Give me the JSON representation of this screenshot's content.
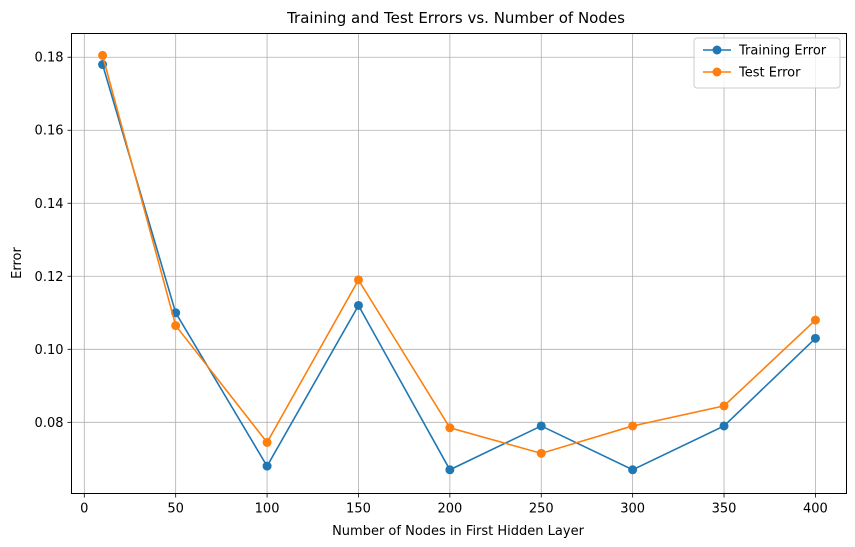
{
  "chart_data": {
    "type": "line",
    "title": "Training and Test Errors vs. Number of Nodes",
    "xlabel": "Number of Nodes in First Hidden Layer",
    "ylabel": "Error",
    "x": [
      10,
      50,
      100,
      150,
      200,
      250,
      300,
      350,
      400
    ],
    "xlim": [
      -7,
      417
    ],
    "ylim": [
      0.0605,
      0.1865
    ],
    "xticks": [
      0,
      50,
      100,
      150,
      200,
      250,
      300,
      350,
      400
    ],
    "yticks": [
      0.08,
      0.1,
      0.12,
      0.14,
      0.16,
      0.18
    ],
    "ytick_labels": [
      "0.08",
      "0.10",
      "0.12",
      "0.14",
      "0.16",
      "0.18"
    ],
    "grid": true,
    "legend_position": "top-right",
    "series": [
      {
        "name": "Training Error",
        "color": "#1f77b4",
        "marker": "circle",
        "values": [
          0.178,
          0.11,
          0.068,
          0.112,
          0.067,
          0.079,
          0.067,
          0.079,
          0.103
        ]
      },
      {
        "name": "Test Error",
        "color": "#ff7f0e",
        "marker": "circle",
        "values": [
          0.1805,
          0.1065,
          0.0745,
          0.119,
          0.0785,
          0.0715,
          0.079,
          0.0845,
          0.108
        ]
      }
    ]
  }
}
